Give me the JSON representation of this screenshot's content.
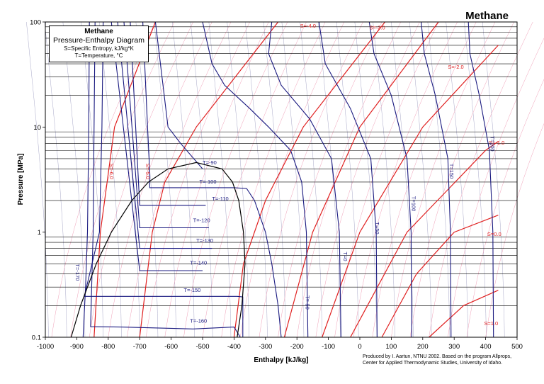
{
  "chart_data": {
    "type": "line",
    "title": "Methane",
    "legend_box": {
      "title": "Methane",
      "subtitle": "Pressure-Enthalpy Diagram",
      "line1": "S=Specific Entropy, kJ/kg*K",
      "line2": "T=Temperature, °C"
    },
    "xlabel": "Enthalpy [kJ/kg]",
    "ylabel": "Pressure [MPa]",
    "xlim": [
      -1000,
      500
    ],
    "ylim": [
      0.1,
      100
    ],
    "yscale": "log",
    "x_ticks": [
      "-1000",
      "-900",
      "-800",
      "-700",
      "-600",
      "-500",
      "-400",
      "-300",
      "-200",
      "-100",
      "0",
      "100",
      "200",
      "300",
      "400",
      "500"
    ],
    "y_ticks": [
      {
        "value": 0.1,
        "label": "0.1"
      },
      {
        "value": 1,
        "label": "1"
      },
      {
        "value": 10,
        "label": "10"
      },
      {
        "value": 100,
        "label": "100"
      }
    ],
    "credit": [
      "Produced by I. Aartun, NTNU 2002. Based on the program Allprops,",
      "Center for Applied Thermodynamic Studies, University of Idaho."
    ],
    "colors": {
      "isotherm": "#1a1a80",
      "isentrope": "#e02020",
      "dome": "#000000",
      "minor_isentrope": "#f0a0b8",
      "minor_isotherm": "#a8a8c8",
      "grid": "#000000"
    },
    "saturation_dome": {
      "pressure_mpa": [
        0.1,
        0.2,
        0.5,
        1.0,
        2.0,
        3.0,
        4.0,
        4.6,
        4.0,
        3.0,
        2.0,
        1.0,
        0.5,
        0.2,
        0.1
      ],
      "enthalpy_kjkg": [
        -918,
        -888,
        -838,
        -790,
        -725,
        -672,
        -610,
        -520,
        -438,
        -405,
        -385,
        -370,
        -365,
        -375,
        -390
      ]
    },
    "isotherms": [
      {
        "label": "T=-170",
        "path": [
          [
            0.1,
            -880
          ],
          [
            0.3,
            -872
          ],
          [
            1,
            -866
          ],
          [
            10,
            -862
          ],
          [
            100,
            -860
          ]
        ],
        "label_at": [
          0.5,
          -903
        ],
        "rotate": 90
      },
      {
        "label": "T=-160",
        "path": [
          [
            0.1,
            -380
          ],
          [
            0.125,
            -400
          ],
          [
            0.12,
            -530
          ],
          [
            0.125,
            -760
          ],
          [
            0.126,
            -856
          ],
          [
            1,
            -848
          ],
          [
            10,
            -845
          ],
          [
            100,
            -842
          ]
        ],
        "label_at": [
          0.137,
          -540
        ],
        "rotate": 0
      },
      {
        "label": "T=-150",
        "path": [
          [
            0.1,
            -372
          ],
          [
            0.242,
            -372
          ],
          [
            0.245,
            -390
          ],
          [
            0.245,
            -600
          ],
          [
            0.245,
            -876
          ],
          [
            1,
            -828
          ],
          [
            10,
            -820
          ],
          [
            100,
            -816
          ]
        ],
        "label_at": [
          0.27,
          -560
        ],
        "rotate": 0
      },
      {
        "label": "T=-140",
        "path": [
          [
            0.43,
            -500
          ],
          [
            0.43,
            -700
          ],
          [
            100,
            -790
          ]
        ],
        "label_at": [
          0.49,
          -540
        ],
        "rotate": 0
      },
      {
        "label": "T=-130",
        "path": [
          [
            0.7,
            -470
          ],
          [
            0.7,
            -700
          ],
          [
            100,
            -770
          ]
        ],
        "label_at": [
          0.8,
          -520
        ],
        "rotate": 0
      },
      {
        "label": "T=-120",
        "path": [
          [
            1.1,
            -480
          ],
          [
            1.1,
            -700
          ],
          [
            100,
            -750
          ]
        ],
        "label_at": [
          1.25,
          -530
        ],
        "rotate": 0
      },
      {
        "label": "T=-110",
        "path": [
          [
            1.8,
            -490
          ],
          [
            1.8,
            -700
          ],
          [
            100,
            -730
          ]
        ],
        "label_at": [
          2.0,
          -470
        ],
        "rotate": 0
      },
      {
        "label": "T=-100",
        "path": [
          [
            0.1,
            -250
          ],
          [
            0.2,
            -260
          ],
          [
            0.5,
            -280
          ],
          [
            1,
            -300
          ],
          [
            2,
            -335
          ],
          [
            2.6,
            -360
          ],
          [
            2.65,
            -400
          ],
          [
            2.65,
            -540
          ],
          [
            2.65,
            -668
          ],
          [
            5,
            -670
          ],
          [
            10,
            -675
          ],
          [
            100,
            -690
          ]
        ],
        "label_at": [
          2.9,
          -510
        ],
        "rotate": 0
      },
      {
        "label": "T=-90",
        "path": [
          [
            4.0,
            -500
          ],
          [
            7,
            -570
          ],
          [
            10,
            -610
          ],
          [
            100,
            -650
          ]
        ],
        "label_at": [
          4.4,
          -500
        ],
        "rotate": 0
      },
      {
        "label": "T=-50",
        "path": [
          [
            0.1,
            -165
          ],
          [
            1,
            -170
          ],
          [
            3,
            -185
          ],
          [
            6,
            -220
          ],
          [
            10,
            -290
          ],
          [
            15,
            -350
          ],
          [
            25,
            -430
          ],
          [
            40,
            -470
          ],
          [
            100,
            -500
          ]
        ],
        "label_at": [
          0.25,
          -172
        ],
        "rotate": 90
      },
      {
        "label": "T=0",
        "path": [
          [
            0.1,
            -60
          ],
          [
            1,
            -65
          ],
          [
            5,
            -90
          ],
          [
            12,
            -160
          ],
          [
            25,
            -250
          ],
          [
            50,
            -290
          ],
          [
            100,
            -280
          ]
        ],
        "label_at": [
          0.65,
          -52
        ],
        "rotate": 90
      },
      {
        "label": "T=50",
        "path": [
          [
            0.1,
            55
          ],
          [
            1,
            52
          ],
          [
            5,
            35
          ],
          [
            15,
            -30
          ],
          [
            40,
            -110
          ],
          [
            100,
            -130
          ]
        ],
        "label_at": [
          1.25,
          50
        ],
        "rotate": 90
      },
      {
        "label": "T=100",
        "path": [
          [
            0.1,
            165
          ],
          [
            1,
            163
          ],
          [
            5,
            150
          ],
          [
            20,
            100
          ],
          [
            50,
            45
          ],
          [
            100,
            30
          ]
        ],
        "label_at": [
          2.2,
          166
        ],
        "rotate": 90
      },
      {
        "label": "T=150",
        "path": [
          [
            0.1,
            290
          ],
          [
            1,
            288
          ],
          [
            5,
            280
          ],
          [
            20,
            240
          ],
          [
            50,
            205
          ],
          [
            100,
            195
          ]
        ],
        "label_at": [
          4.5,
          286
        ],
        "rotate": 90
      },
      {
        "label": "T=200",
        "path": [
          [
            0.1,
            425
          ],
          [
            1,
            423
          ],
          [
            6,
            412
          ],
          [
            20,
            380
          ],
          [
            50,
            350
          ],
          [
            100,
            345
          ]
        ],
        "label_at": [
          8.2,
          415
        ],
        "rotate": 90
      }
    ],
    "isentropes": [
      {
        "label": "S=-6.0",
        "path": [
          [
            0.1,
            -845
          ],
          [
            1,
            -825
          ],
          [
            10,
            -780
          ],
          [
            100,
            -650
          ]
        ],
        "label_at": [
          4.5,
          -795
        ],
        "rotate": 90
      },
      {
        "label": "S=-5.0",
        "path": [
          [
            0.1,
            -700
          ],
          [
            1,
            -660
          ],
          [
            3,
            -620
          ],
          [
            10,
            -520
          ],
          [
            100,
            -260
          ]
        ],
        "label_at": [
          4.5,
          -680
        ],
        "rotate": 90
      },
      {
        "label": "S=-4.0",
        "path": [
          [
            0.1,
            -400
          ],
          [
            0.5,
            -370
          ],
          [
            2,
            -300
          ],
          [
            10,
            -180
          ],
          [
            100,
            80
          ]
        ],
        "label_at": [
          88,
          -190
        ],
        "rotate": 0
      },
      {
        "label": "S=-3.0",
        "path": [
          [
            0.1,
            -240
          ],
          [
            1,
            -150
          ],
          [
            10,
            0
          ],
          [
            100,
            250
          ]
        ],
        "label_at": [
          85,
          30
        ],
        "rotate": 0
      },
      {
        "label": "S=-2.0",
        "path": [
          [
            0.1,
            -120
          ],
          [
            1,
            0
          ],
          [
            10,
            200
          ],
          [
            60,
            440
          ]
        ],
        "label_at": [
          36,
          280
        ],
        "rotate": 0
      },
      {
        "label": "S=-1.0",
        "path": [
          [
            0.1,
            -30
          ],
          [
            1,
            150
          ],
          [
            6,
            400
          ],
          [
            7.3,
            440
          ]
        ],
        "label_at": [
          6.8,
          410
        ],
        "rotate": 0
      },
      {
        "label": "S=0.0",
        "path": [
          [
            0.1,
            70
          ],
          [
            0.4,
            180
          ],
          [
            1,
            300
          ],
          [
            1.45,
            440
          ]
        ],
        "label_at": [
          0.92,
          405
        ],
        "rotate": 0
      },
      {
        "label": "S=1.0",
        "path": [
          [
            0.1,
            220
          ],
          [
            0.2,
            330
          ],
          [
            0.28,
            440
          ]
        ],
        "label_at": [
          0.13,
          395
        ],
        "rotate": 0
      }
    ]
  }
}
